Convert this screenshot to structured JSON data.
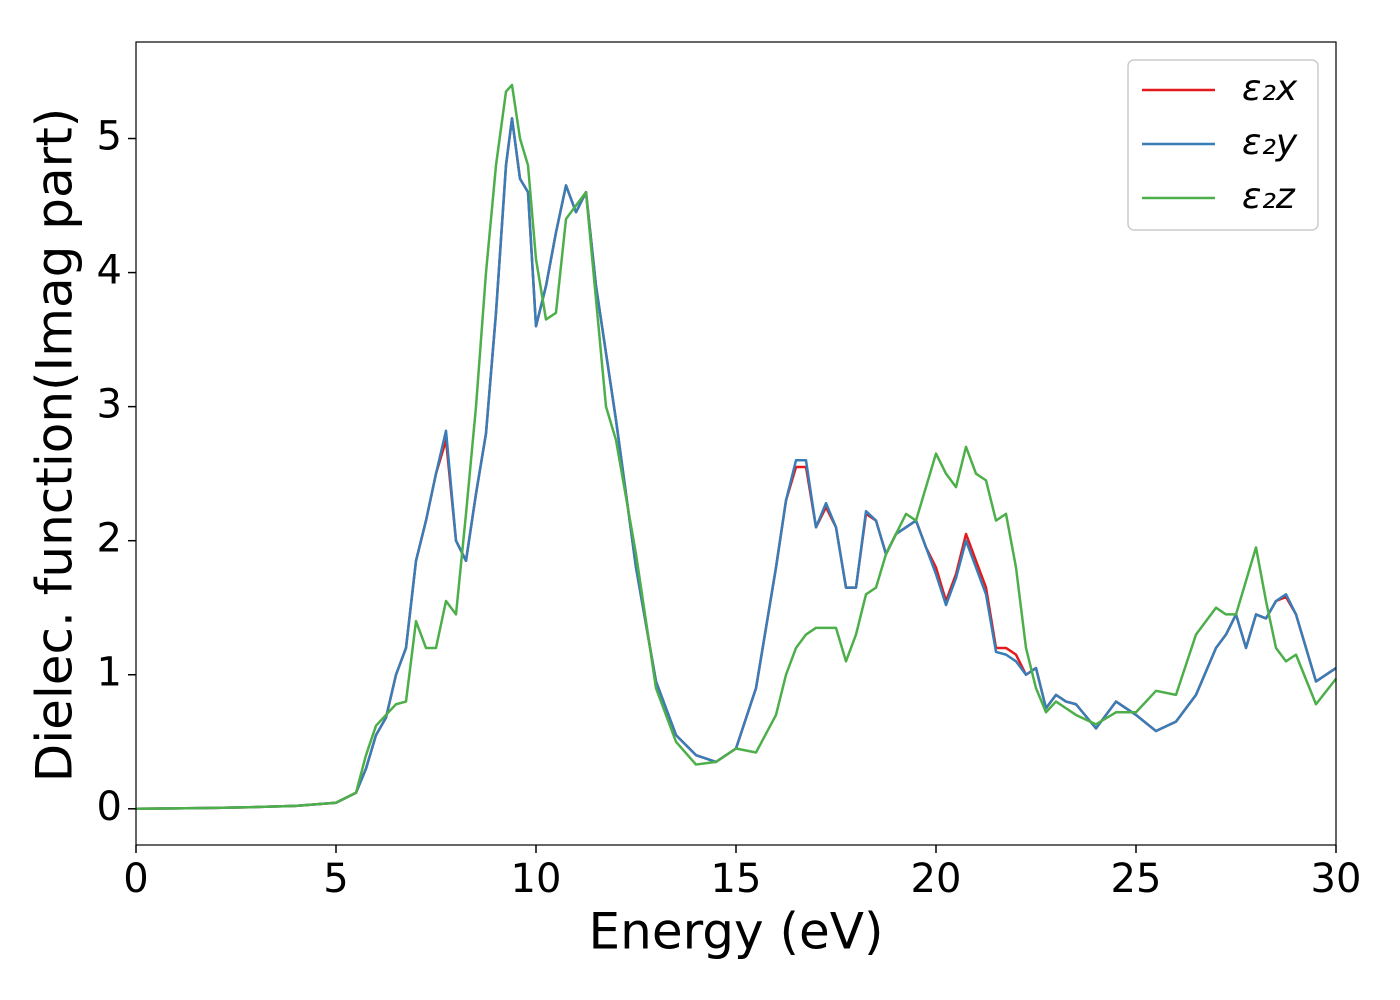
{
  "chart_data": {
    "type": "line",
    "xlabel": "Energy (eV)",
    "ylabel": "Dielec. function(Imag part)",
    "x": [
      0,
      1,
      2,
      3,
      4,
      5,
      5.5,
      5.75,
      6,
      6.25,
      6.5,
      6.75,
      7,
      7.25,
      7.5,
      7.75,
      8,
      8.25,
      8.5,
      8.75,
      9,
      9.25,
      9.4,
      9.6,
      9.8,
      10,
      10.25,
      10.5,
      10.75,
      11,
      11.25,
      11.5,
      11.75,
      12,
      12.5,
      13,
      13.5,
      14,
      14.5,
      15,
      15.5,
      16,
      16.25,
      16.5,
      16.75,
      17,
      17.25,
      17.5,
      17.75,
      18,
      18.25,
      18.5,
      18.75,
      19,
      19.25,
      19.5,
      19.75,
      20,
      20.25,
      20.5,
      20.75,
      21,
      21.25,
      21.5,
      21.75,
      22,
      22.25,
      22.5,
      22.75,
      23,
      23.25,
      23.5,
      24,
      24.5,
      25,
      25.5,
      26,
      26.5,
      27,
      27.25,
      27.5,
      27.75,
      28,
      28.25,
      28.5,
      28.75,
      29,
      29.5,
      30
    ],
    "series": [
      {
        "name": "ε₂x",
        "color": "#e41a1c",
        "values": [
          0,
          0.003,
          0.007,
          0.013,
          0.022,
          0.045,
          0.12,
          0.3,
          0.55,
          0.68,
          1.0,
          1.2,
          1.85,
          2.15,
          2.5,
          2.75,
          2.0,
          1.85,
          2.35,
          2.8,
          3.7,
          4.8,
          5.15,
          4.7,
          4.6,
          3.6,
          3.9,
          4.3,
          4.65,
          4.45,
          4.6,
          3.9,
          3.4,
          2.9,
          1.8,
          0.95,
          0.55,
          0.4,
          0.35,
          0.45,
          0.9,
          1.8,
          2.3,
          2.55,
          2.55,
          2.1,
          2.25,
          2.1,
          1.65,
          1.65,
          2.2,
          2.15,
          1.9,
          2.05,
          2.1,
          2.15,
          1.95,
          1.8,
          1.55,
          1.75,
          2.05,
          1.85,
          1.65,
          1.2,
          1.2,
          1.15,
          1.0,
          1.05,
          0.75,
          0.85,
          0.8,
          0.78,
          0.6,
          0.8,
          0.7,
          0.58,
          0.65,
          0.85,
          1.2,
          1.3,
          1.45,
          1.2,
          1.45,
          1.42,
          1.55,
          1.58,
          1.45,
          0.95,
          1.05
        ]
      },
      {
        "name": "ε₂y",
        "color": "#377eb8",
        "values": [
          0,
          0.003,
          0.007,
          0.013,
          0.022,
          0.045,
          0.12,
          0.3,
          0.55,
          0.68,
          1.0,
          1.2,
          1.85,
          2.15,
          2.5,
          2.82,
          2.0,
          1.85,
          2.35,
          2.8,
          3.7,
          4.8,
          5.15,
          4.7,
          4.6,
          3.6,
          3.9,
          4.3,
          4.65,
          4.45,
          4.6,
          3.9,
          3.4,
          2.9,
          1.8,
          0.95,
          0.55,
          0.4,
          0.35,
          0.45,
          0.9,
          1.8,
          2.3,
          2.6,
          2.6,
          2.1,
          2.28,
          2.1,
          1.65,
          1.65,
          2.22,
          2.15,
          1.9,
          2.05,
          2.1,
          2.15,
          1.95,
          1.75,
          1.52,
          1.72,
          2.0,
          1.8,
          1.6,
          1.17,
          1.15,
          1.1,
          1.0,
          1.05,
          0.75,
          0.85,
          0.8,
          0.78,
          0.6,
          0.8,
          0.7,
          0.58,
          0.65,
          0.85,
          1.2,
          1.3,
          1.45,
          1.2,
          1.45,
          1.42,
          1.55,
          1.6,
          1.45,
          0.95,
          1.05
        ]
      },
      {
        "name": "ε₂z",
        "color": "#4daf4a",
        "values": [
          0,
          0.003,
          0.007,
          0.013,
          0.022,
          0.045,
          0.12,
          0.4,
          0.62,
          0.7,
          0.78,
          0.8,
          1.4,
          1.2,
          1.2,
          1.55,
          1.45,
          2.2,
          3.0,
          4.0,
          4.8,
          5.35,
          5.4,
          5.0,
          4.8,
          4.1,
          3.65,
          3.7,
          4.4,
          4.5,
          4.6,
          3.8,
          3.0,
          2.75,
          1.9,
          0.9,
          0.5,
          0.33,
          0.35,
          0.45,
          0.42,
          0.7,
          1.0,
          1.2,
          1.3,
          1.35,
          1.35,
          1.35,
          1.1,
          1.3,
          1.6,
          1.65,
          1.9,
          2.05,
          2.2,
          2.15,
          2.4,
          2.65,
          2.5,
          2.4,
          2.7,
          2.5,
          2.45,
          2.15,
          2.2,
          1.8,
          1.2,
          0.9,
          0.72,
          0.8,
          0.75,
          0.7,
          0.63,
          0.72,
          0.72,
          0.88,
          0.85,
          1.3,
          1.5,
          1.45,
          1.45,
          1.7,
          1.95,
          1.55,
          1.2,
          1.1,
          1.15,
          0.78,
          0.97
        ]
      }
    ],
    "xlim": [
      0,
      30
    ],
    "xticks": [
      0,
      5,
      10,
      15,
      20,
      25,
      30
    ],
    "ylim": [
      -0.27,
      5.72
    ],
    "yticks": [
      0,
      1,
      2,
      3,
      4,
      5
    ],
    "legend": "upper right"
  }
}
